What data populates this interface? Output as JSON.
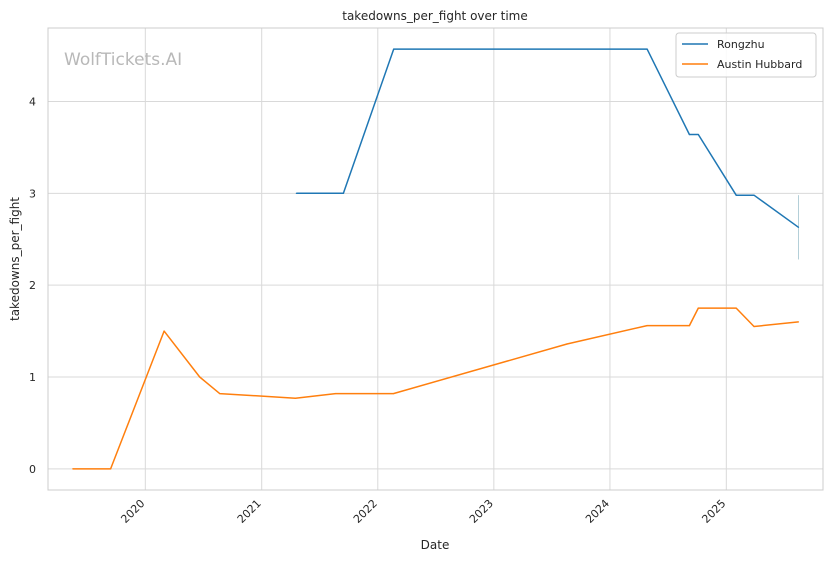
{
  "chart_data": {
    "type": "line",
    "title": "takedowns_per_fight over time",
    "xlabel": "Date",
    "ylabel": "takedowns_per_fight",
    "watermark": "WolfTickets.AI",
    "x_ticks": [
      "2020",
      "2021",
      "2022",
      "2023",
      "2024",
      "2025"
    ],
    "y_ticks": [
      "0",
      "1",
      "2",
      "3",
      "4"
    ],
    "xlim": [
      "2019-03-01",
      "2025-11-01"
    ],
    "ylim": [
      -0.23,
      4.8
    ],
    "grid": true,
    "legend_position": "top-right",
    "series": [
      {
        "name": "Rongzhu",
        "color": "#1f77b4",
        "points": [
          [
            "2021-04-20",
            3.0
          ],
          [
            "2021-09-15",
            3.0
          ],
          [
            "2022-02-20",
            4.57
          ],
          [
            "2024-04-27",
            4.57
          ],
          [
            "2024-09-07",
            3.64
          ],
          [
            "2024-10-05",
            3.64
          ],
          [
            "2025-02-01",
            2.98
          ],
          [
            "2025-03-29",
            2.98
          ],
          [
            "2025-08-16",
            2.63
          ]
        ]
      },
      {
        "name": "Austin Hubbard",
        "color": "#ff7f0e",
        "points": [
          [
            "2019-05-18",
            0.0
          ],
          [
            "2019-09-14",
            0.0
          ],
          [
            "2020-02-29",
            1.5
          ],
          [
            "2020-06-20",
            1.0
          ],
          [
            "2020-08-22",
            0.82
          ],
          [
            "2021-04-17",
            0.77
          ],
          [
            "2021-08-21",
            0.82
          ],
          [
            "2022-02-19",
            0.82
          ],
          [
            "2023-08-19",
            1.36
          ],
          [
            "2024-04-27",
            1.56
          ],
          [
            "2024-09-07",
            1.56
          ],
          [
            "2024-10-05",
            1.75
          ],
          [
            "2025-02-01",
            1.75
          ],
          [
            "2025-03-29",
            1.55
          ],
          [
            "2025-08-16",
            1.6
          ]
        ]
      }
    ],
    "annotations": [
      {
        "type": "vertical-line",
        "x": "2025-08-16",
        "y": [
          2.28,
          2.98
        ],
        "color": "#b4cfd8"
      }
    ]
  }
}
